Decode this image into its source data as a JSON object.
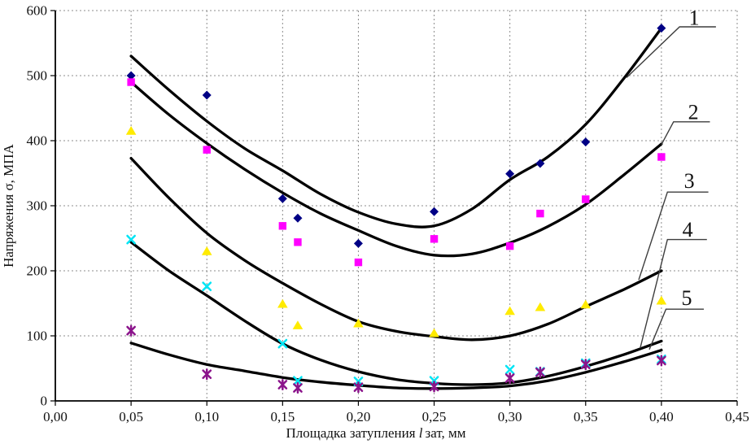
{
  "chart_data": {
    "type": "scatter",
    "title": "",
    "ylabel": "Напряжения σ, МПА",
    "xlabel_parts": {
      "prefix": "Площадка затупления ",
      "symbol": "l",
      "suffix": "зат, мм"
    },
    "xlim": [
      0,
      0.45
    ],
    "ylim": [
      0,
      600
    ],
    "grid": "dotted",
    "legend_position": "none",
    "x_ticks": [
      {
        "v": 0.0,
        "label": "0,00"
      },
      {
        "v": 0.05,
        "label": "0,05"
      },
      {
        "v": 0.1,
        "label": "0,10"
      },
      {
        "v": 0.15,
        "label": "0,15"
      },
      {
        "v": 0.2,
        "label": "0,20"
      },
      {
        "v": 0.25,
        "label": "0,25"
      },
      {
        "v": 0.3,
        "label": "0,30"
      },
      {
        "v": 0.35,
        "label": "0,35"
      },
      {
        "v": 0.4,
        "label": "0,40"
      },
      {
        "v": 0.45,
        "label": "0,45"
      }
    ],
    "y_ticks": [
      {
        "v": 0,
        "label": "0"
      },
      {
        "v": 100,
        "label": "100"
      },
      {
        "v": 200,
        "label": "200"
      },
      {
        "v": 300,
        "label": "300"
      },
      {
        "v": 400,
        "label": "400"
      },
      {
        "v": 500,
        "label": "500"
      },
      {
        "v": 600,
        "label": "600"
      }
    ],
    "x": [
      0.05,
      0.1,
      0.15,
      0.16,
      0.2,
      0.25,
      0.3,
      0.32,
      0.35,
      0.4
    ],
    "series": [
      {
        "name": "1",
        "marker": "diamond",
        "color": "#000085",
        "values": [
          500,
          470,
          311,
          281,
          242,
          291,
          349,
          365,
          398,
          573
        ]
      },
      {
        "name": "2",
        "marker": "square",
        "color": "#FF00FF",
        "values": [
          490,
          386,
          269,
          244,
          213,
          249,
          238,
          288,
          310,
          375
        ]
      },
      {
        "name": "3",
        "marker": "triangle",
        "color": "#FFEB00",
        "values": [
          415,
          230,
          149,
          116,
          119,
          104,
          138,
          144,
          148,
          154
        ]
      },
      {
        "name": "4",
        "marker": "x",
        "color": "#00E5F5",
        "values": [
          248,
          176,
          88,
          31,
          30,
          31,
          48,
          45,
          58,
          64
        ]
      },
      {
        "name": "5",
        "marker": "asterisk",
        "color": "#8B148B",
        "values": [
          108,
          41,
          25,
          20,
          21,
          22,
          35,
          44,
          56,
          62
        ]
      }
    ],
    "fit_curves": [
      {
        "name": "1",
        "points": [
          [
            0.05,
            530
          ],
          [
            0.075,
            478
          ],
          [
            0.1,
            430
          ],
          [
            0.125,
            388
          ],
          [
            0.15,
            354
          ],
          [
            0.175,
            318
          ],
          [
            0.2,
            290
          ],
          [
            0.225,
            272
          ],
          [
            0.25,
            269
          ],
          [
            0.275,
            295
          ],
          [
            0.3,
            340
          ],
          [
            0.325,
            375
          ],
          [
            0.35,
            425
          ],
          [
            0.375,
            495
          ],
          [
            0.4,
            573
          ]
        ]
      },
      {
        "name": "2",
        "points": [
          [
            0.05,
            490
          ],
          [
            0.075,
            440
          ],
          [
            0.1,
            396
          ],
          [
            0.125,
            356
          ],
          [
            0.15,
            320
          ],
          [
            0.175,
            288
          ],
          [
            0.2,
            262
          ],
          [
            0.225,
            238
          ],
          [
            0.25,
            224
          ],
          [
            0.275,
            226
          ],
          [
            0.3,
            243
          ],
          [
            0.325,
            268
          ],
          [
            0.35,
            302
          ],
          [
            0.375,
            347
          ],
          [
            0.4,
            395
          ]
        ]
      },
      {
        "name": "3",
        "points": [
          [
            0.05,
            373
          ],
          [
            0.075,
            312
          ],
          [
            0.1,
            258
          ],
          [
            0.125,
            216
          ],
          [
            0.15,
            181
          ],
          [
            0.175,
            149
          ],
          [
            0.2,
            122
          ],
          [
            0.225,
            107
          ],
          [
            0.25,
            99
          ],
          [
            0.275,
            94
          ],
          [
            0.3,
            100
          ],
          [
            0.325,
            118
          ],
          [
            0.35,
            145
          ],
          [
            0.375,
            171
          ],
          [
            0.4,
            200
          ]
        ]
      },
      {
        "name": "4",
        "points": [
          [
            0.05,
            244
          ],
          [
            0.075,
            200
          ],
          [
            0.1,
            162
          ],
          [
            0.125,
            123
          ],
          [
            0.15,
            88
          ],
          [
            0.175,
            63
          ],
          [
            0.2,
            45
          ],
          [
            0.225,
            33
          ],
          [
            0.25,
            27
          ],
          [
            0.275,
            25
          ],
          [
            0.3,
            28
          ],
          [
            0.325,
            38
          ],
          [
            0.35,
            53
          ],
          [
            0.375,
            71
          ],
          [
            0.4,
            92
          ]
        ]
      },
      {
        "name": "5",
        "points": [
          [
            0.05,
            89
          ],
          [
            0.075,
            71
          ],
          [
            0.1,
            56
          ],
          [
            0.125,
            46
          ],
          [
            0.15,
            36
          ],
          [
            0.175,
            29
          ],
          [
            0.2,
            24
          ],
          [
            0.225,
            20
          ],
          [
            0.25,
            19
          ],
          [
            0.275,
            20
          ],
          [
            0.3,
            23
          ],
          [
            0.325,
            31
          ],
          [
            0.35,
            44
          ],
          [
            0.375,
            60
          ],
          [
            0.4,
            78
          ]
        ]
      }
    ],
    "curve_labels": [
      {
        "text": "1",
        "x": 0.4216,
        "y": 589,
        "leader": [
          [
            0.377,
            497
          ],
          [
            0.412,
            575
          ],
          [
            0.436,
            575
          ]
        ]
      },
      {
        "text": "2",
        "x": 0.4211,
        "y": 444,
        "leader": [
          [
            0.4,
            394
          ],
          [
            0.408,
            429
          ],
          [
            0.432,
            429
          ]
        ]
      },
      {
        "text": "3",
        "x": 0.4184,
        "y": 338,
        "leader": [
          [
            0.385,
            186
          ],
          [
            0.404,
            321
          ],
          [
            0.431,
            321
          ]
        ]
      },
      {
        "text": "4",
        "x": 0.4173,
        "y": 263,
        "leader": [
          [
            0.386,
            81
          ],
          [
            0.404,
            248
          ],
          [
            0.43,
            248
          ]
        ]
      },
      {
        "text": "5",
        "x": 0.4167,
        "y": 158,
        "leader": [
          [
            0.392,
            79
          ],
          [
            0.403,
            141
          ],
          [
            0.428,
            141
          ]
        ]
      }
    ]
  }
}
